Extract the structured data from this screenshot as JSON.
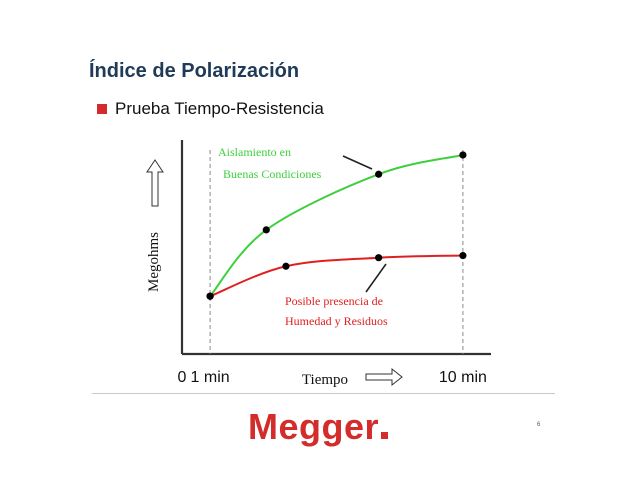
{
  "slide": {
    "title": "Índice de Polarización",
    "bullet": "Prueba Tiempo-Resistencia",
    "page_number": "6",
    "logo_text": "Megger",
    "colors": {
      "accent": "#d42b2b",
      "title": "#1f3b57",
      "green_curve": "#3ecf3e",
      "red_curve": "#e02020"
    }
  },
  "chart_data": {
    "type": "line",
    "title": "",
    "xlabel": "Tiempo",
    "ylabel": "Megohms",
    "x_ticks": [
      {
        "value": 0,
        "label": "0"
      },
      {
        "value": 1,
        "label": "1 min"
      },
      {
        "value": 10,
        "label": "10 min"
      }
    ],
    "xlim": [
      0,
      11
    ],
    "ylim": [
      0,
      10
    ],
    "series": [
      {
        "label": "Aislamiento en Buenas Condiciones",
        "color": "#3ecf3e",
        "points": [
          [
            1,
            2.7
          ],
          [
            3,
            5.8
          ],
          [
            7,
            8.4
          ],
          [
            10,
            9.3
          ]
        ]
      },
      {
        "label": "Posible presencia de Humedad y Residuos",
        "color": "#e02020",
        "points": [
          [
            1,
            2.7
          ],
          [
            3.7,
            4.1
          ],
          [
            7,
            4.5
          ],
          [
            10,
            4.6
          ]
        ]
      }
    ],
    "annotations": [
      {
        "lines": [
          "Aislamiento en",
          "Buenas Condiciones"
        ],
        "color": "#3ecf3e"
      },
      {
        "lines": [
          "Posible presencia de",
          "Humedad y Residuos"
        ],
        "color": "#e02020"
      }
    ]
  }
}
